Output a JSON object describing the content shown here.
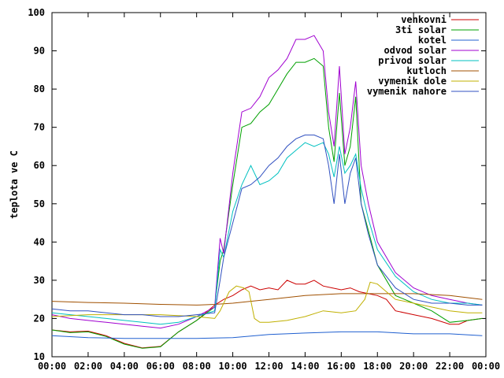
{
  "chart_data": {
    "type": "line",
    "title": "",
    "xlabel": "",
    "ylabel": "teplota ve C",
    "xlim": [
      0,
      24
    ],
    "ylim": [
      10,
      100
    ],
    "xticks": [
      "00:00",
      "02:00",
      "04:00",
      "06:00",
      "08:00",
      "10:00",
      "12:00",
      "14:00",
      "16:00",
      "18:00",
      "20:00",
      "22:00",
      "00:00"
    ],
    "yticks": [
      "10",
      "20",
      "30",
      "40",
      "50",
      "60",
      "70",
      "80",
      "90",
      "100"
    ],
    "grid": false,
    "legend_position": "top-right",
    "series": [
      {
        "name": "venkovni",
        "color": "#cc0000",
        "x": [
          0,
          1,
          2,
          3,
          4,
          5,
          6,
          7,
          8,
          9,
          9.5,
          10,
          10.5,
          11,
          11.5,
          12,
          12.5,
          13,
          13.5,
          14,
          14.5,
          15,
          15.5,
          16,
          16.5,
          17,
          17.5,
          18,
          18.5,
          19,
          20,
          21,
          22,
          22.5,
          23,
          23.8
        ],
        "y": [
          17,
          16.5,
          16.7,
          15.5,
          13.5,
          12.3,
          12.7,
          16.5,
          19.5,
          23.5,
          25,
          26,
          27.5,
          28.5,
          27.5,
          28,
          27.5,
          30,
          29,
          29,
          30,
          28.5,
          28,
          27.5,
          28,
          27,
          26.5,
          26,
          25,
          22,
          21,
          20,
          18.5,
          18.5,
          19.5,
          20
        ]
      },
      {
        "name": "3ti solar",
        "color": "#00a000",
        "x": [
          0,
          1,
          2,
          3,
          4,
          5,
          6,
          7,
          8,
          9,
          9.3,
          9.5,
          10,
          10.5,
          11,
          11.5,
          12,
          12.5,
          13,
          13.5,
          14,
          14.5,
          15,
          15.3,
          15.6,
          15.9,
          16.2,
          16.5,
          16.8,
          17.1,
          17.5,
          18,
          19,
          20,
          21,
          22,
          23,
          23.8
        ],
        "y": [
          17,
          16.3,
          16.5,
          15.3,
          13.3,
          12.2,
          12.6,
          16.5,
          19.5,
          23,
          35,
          38,
          55,
          70,
          71,
          74,
          76,
          80,
          84,
          87,
          87,
          88,
          86,
          70,
          61,
          79,
          60,
          65,
          78,
          50,
          43,
          34,
          26,
          24,
          22,
          19,
          19.5,
          20
        ]
      },
      {
        "name": "kotel",
        "color": "#2060d0",
        "x": [
          0,
          2,
          4,
          6,
          8,
          10,
          12,
          14,
          16,
          18,
          20,
          22,
          23.8
        ],
        "y": [
          15.5,
          15,
          14.8,
          14.8,
          14.8,
          15,
          15.8,
          16.2,
          16.5,
          16.5,
          16,
          16,
          15.5
        ]
      },
      {
        "name": "odvod solar",
        "color": "#a000d0",
        "x": [
          0,
          1,
          2,
          3,
          4,
          5,
          6,
          7,
          8,
          9,
          9.3,
          9.5,
          10,
          10.5,
          11,
          11.5,
          12,
          12.5,
          13,
          13.5,
          14,
          14.5,
          15,
          15.3,
          15.6,
          15.9,
          16.2,
          16.5,
          16.8,
          17.1,
          17.5,
          18,
          19,
          20,
          21,
          22,
          23,
          23.8
        ],
        "y": [
          21,
          20,
          19.5,
          19,
          18.5,
          18,
          17.5,
          18.5,
          20.5,
          23,
          41,
          37,
          58,
          74,
          75,
          78,
          83,
          85,
          88,
          93,
          93,
          94,
          90,
          74,
          65,
          86,
          63,
          70,
          82,
          60,
          50,
          40,
          32,
          28,
          26,
          25,
          24,
          23.5
        ]
      },
      {
        "name": "privod solar",
        "color": "#00c0c0",
        "x": [
          0,
          1,
          2,
          3,
          4,
          5,
          6,
          7,
          8,
          9,
          9.3,
          9.5,
          10,
          10.5,
          11,
          11.5,
          12,
          12.5,
          13,
          13.5,
          14,
          14.5,
          15,
          15.3,
          15.6,
          15.9,
          16.2,
          16.5,
          16.8,
          17.1,
          17.5,
          18,
          19,
          20,
          21,
          22,
          23,
          23.8
        ],
        "y": [
          21.5,
          21,
          20.5,
          20,
          19.5,
          19,
          18.5,
          19,
          20.5,
          22,
          38,
          36,
          48,
          55,
          60,
          55,
          56,
          58,
          62,
          64,
          66,
          65,
          66,
          63,
          57,
          65,
          58,
          60,
          63,
          54,
          46,
          38,
          31,
          27,
          25,
          24,
          24,
          23.5
        ]
      },
      {
        "name": "kutloch",
        "color": "#a05000",
        "x": [
          0,
          2,
          4,
          6,
          8,
          9,
          10,
          12,
          14,
          16,
          18,
          20,
          22,
          23.8
        ],
        "y": [
          24.5,
          24.2,
          24,
          23.7,
          23.5,
          23.7,
          24,
          25,
          26,
          26.5,
          26.5,
          26.5,
          26,
          25
        ]
      },
      {
        "name": "vymenik dole",
        "color": "#c0b000",
        "x": [
          0,
          2,
          4,
          6,
          8,
          9,
          9.3,
          9.8,
          10.2,
          10.6,
          10.9,
          11.2,
          11.5,
          12,
          13,
          14,
          15,
          16,
          16.8,
          17.3,
          17.6,
          18,
          18.5,
          19,
          20,
          21,
          22,
          23,
          23.8
        ],
        "y": [
          20.5,
          21,
          21,
          21,
          20.5,
          20,
          22,
          27,
          28.5,
          28,
          27,
          20,
          19,
          19,
          19.5,
          20.5,
          22,
          21.5,
          22,
          25,
          29.5,
          29,
          27,
          25,
          24,
          23,
          22,
          21.5,
          21.5
        ]
      },
      {
        "name": "vymenik nahore",
        "color": "#3050c0",
        "x": [
          0,
          1,
          2,
          3,
          4,
          5,
          6,
          7,
          8,
          9,
          9.3,
          9.5,
          10,
          10.5,
          11,
          11.5,
          12,
          12.5,
          13,
          13.5,
          14,
          14.5,
          15,
          15.3,
          15.6,
          15.9,
          16.2,
          16.5,
          16.8,
          17.1,
          17.5,
          18,
          19,
          20,
          21,
          22,
          23,
          23.8
        ],
        "y": [
          22.5,
          22,
          22,
          21.5,
          21,
          21,
          20.5,
          20.5,
          21,
          21.5,
          30,
          36,
          45,
          54,
          55,
          57,
          60,
          62,
          65,
          67,
          68,
          68,
          67,
          60,
          50,
          63,
          50,
          58,
          62,
          50,
          42,
          34,
          28,
          25,
          24,
          24,
          23.5,
          23.5
        ]
      }
    ]
  }
}
